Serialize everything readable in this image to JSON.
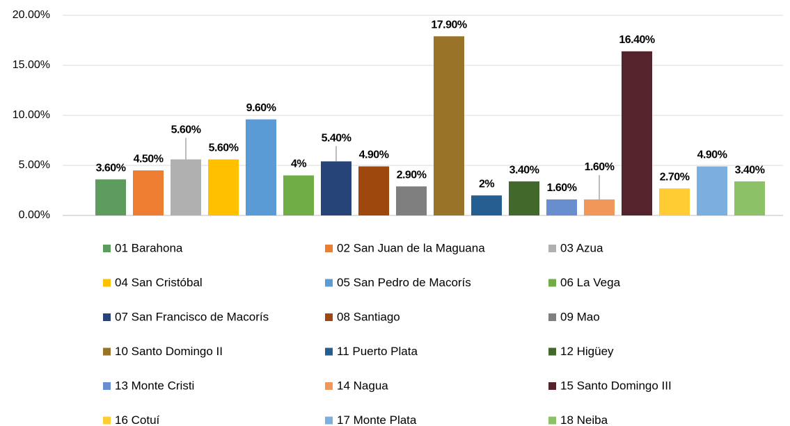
{
  "chart_data": {
    "type": "bar",
    "ylim": [
      0,
      20
    ],
    "yticks": [
      {
        "value": 0,
        "label": "0.00%"
      },
      {
        "value": 5,
        "label": "5.00%"
      },
      {
        "value": 10,
        "label": "10.00%"
      },
      {
        "value": 15,
        "label": "15.00%"
      },
      {
        "value": 20,
        "label": "20.00%"
      }
    ],
    "grid": true,
    "legend": "bottom",
    "series": [
      {
        "name": "01 Barahona",
        "color": "#5e9b5f",
        "values": [
          3.6
        ],
        "value_labels": [
          "3.60%"
        ]
      },
      {
        "name": "02 San Juan de la Maguana",
        "color": "#ed7d31",
        "values": [
          4.5
        ],
        "value_labels": [
          "4.50%"
        ]
      },
      {
        "name": "03 Azua",
        "color": "#b0b0b0",
        "values": [
          5.6
        ],
        "value_labels": [
          "5.60%"
        ]
      },
      {
        "name": "04 San Cristóbal",
        "color": "#ffc000",
        "values": [
          5.6
        ],
        "value_labels": [
          "5.60%"
        ]
      },
      {
        "name": "05 San Pedro de Macorís",
        "color": "#5b9bd5",
        "values": [
          9.6
        ],
        "value_labels": [
          "9.60%"
        ]
      },
      {
        "name": "06 La Vega",
        "color": "#70ad47",
        "values": [
          4
        ],
        "value_labels": [
          "4%"
        ]
      },
      {
        "name": "07 San Francisco de Macorís",
        "color": "#264478",
        "values": [
          5.4
        ],
        "value_labels": [
          "5.40%"
        ]
      },
      {
        "name": "08 Santiago",
        "color": "#9e480e",
        "values": [
          4.9
        ],
        "value_labels": [
          "4.90%"
        ]
      },
      {
        "name": "09 Mao",
        "color": "#7f7f7f",
        "values": [
          2.9
        ],
        "value_labels": [
          "2.90%"
        ]
      },
      {
        "name": "10 Santo Domingo II",
        "color": "#997328",
        "values": [
          17.9
        ],
        "value_labels": [
          "17.90%"
        ]
      },
      {
        "name": "11 Puerto Plata",
        "color": "#255e91",
        "values": [
          2
        ],
        "value_labels": [
          "2%"
        ]
      },
      {
        "name": "12 Higüey",
        "color": "#43682b",
        "values": [
          3.4
        ],
        "value_labels": [
          "3.40%"
        ]
      },
      {
        "name": "13 Monte Cristi",
        "color": "#698ed0",
        "values": [
          1.6
        ],
        "value_labels": [
          "1.60%"
        ]
      },
      {
        "name": "14 Nagua",
        "color": "#f1975a",
        "values": [
          1.6
        ],
        "value_labels": [
          "1.60%"
        ]
      },
      {
        "name": "15 Santo Domingo III",
        "color": "#55232b",
        "values": [
          16.4
        ],
        "value_labels": [
          "16.40%"
        ]
      },
      {
        "name": "16 Cotuí",
        "color": "#ffcd33",
        "values": [
          2.7
        ],
        "value_labels": [
          "2.70%"
        ]
      },
      {
        "name": "17 Monte Plata",
        "color": "#7cafdd",
        "values": [
          4.9
        ],
        "value_labels": [
          "4.90%"
        ]
      },
      {
        "name": "18 Neiba",
        "color": "#8cc168",
        "values": [
          3.4
        ],
        "value_labels": [
          "3.40%"
        ]
      }
    ]
  }
}
